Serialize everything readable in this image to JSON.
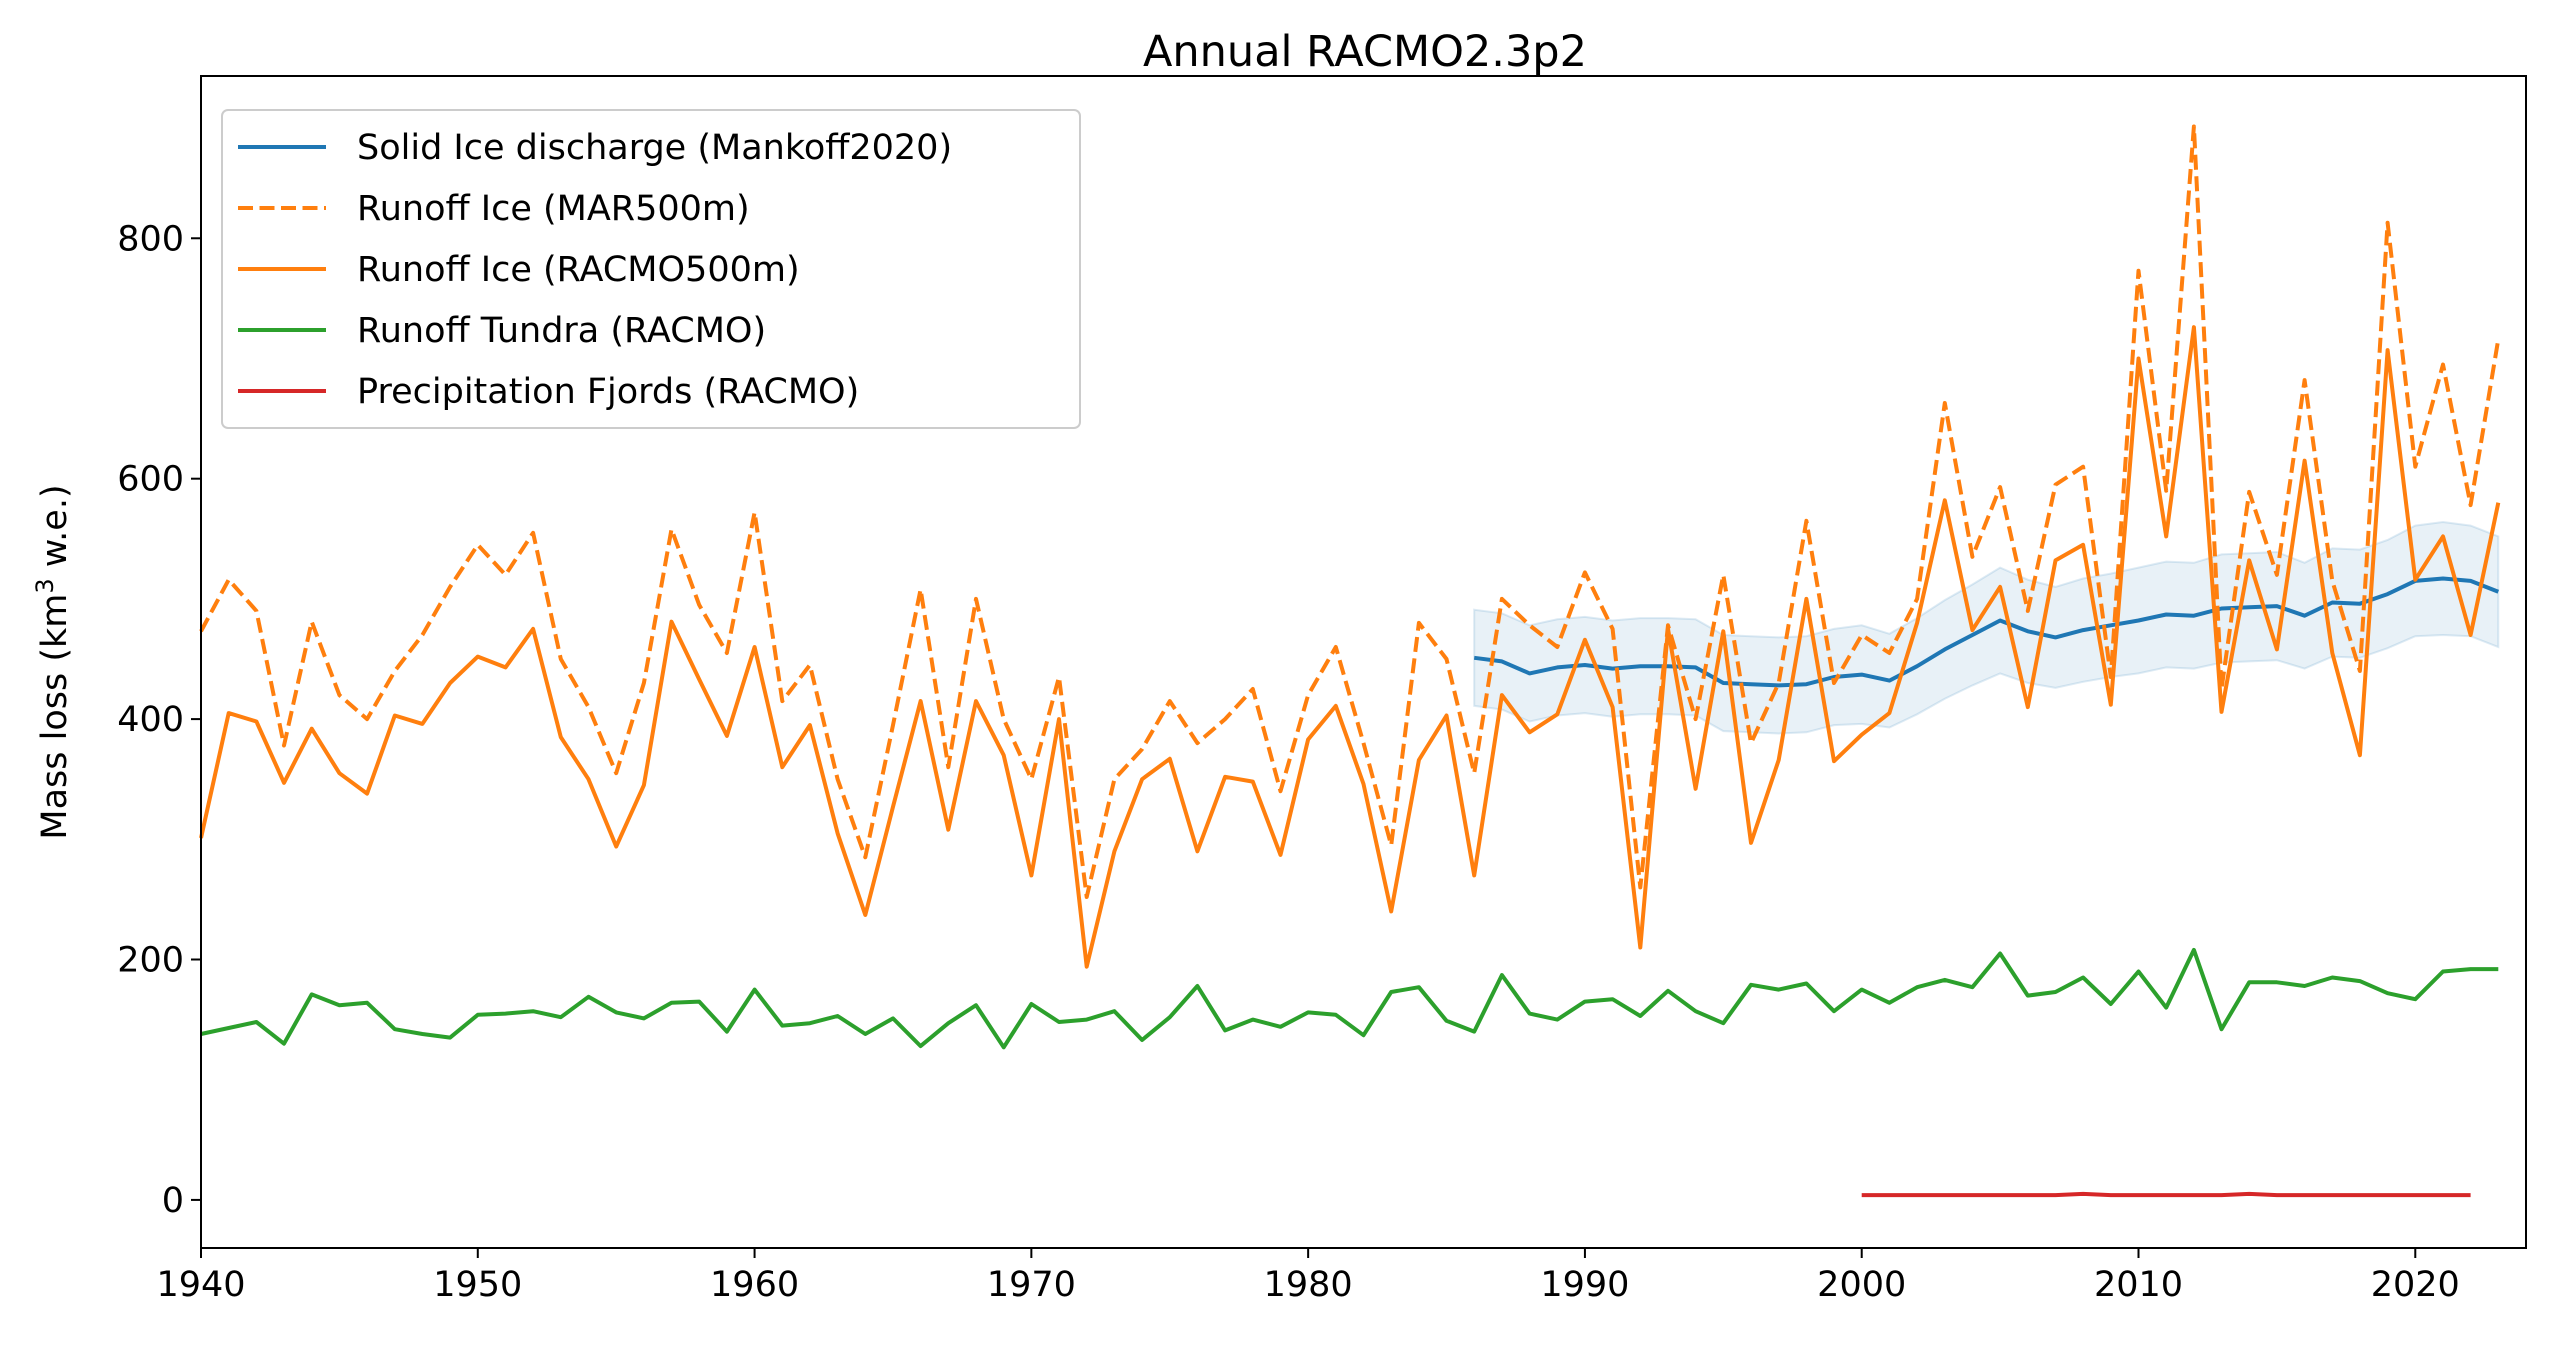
{
  "chart_data": {
    "type": "line",
    "title": "Annual RACMO2.3p2",
    "xlabel": "",
    "ylabel_main": "Mass loss (km",
    "ylabel_sup": "3",
    "ylabel_tail": " w.e.)",
    "xlim": [
      1940,
      2024
    ],
    "ylim": [
      -40,
      935
    ],
    "xticks": [
      1940,
      1950,
      1960,
      1970,
      1980,
      1990,
      2000,
      2010,
      2020
    ],
    "yticks": [
      0,
      200,
      400,
      600,
      800
    ],
    "grid": false,
    "legend_position": "upper-left",
    "series": [
      {
        "name": "Solid Ice discharge (Mankoff2020)",
        "color": "#1f77b4",
        "dash": "solid",
        "x": [
          1986,
          1987,
          1988,
          1989,
          1990,
          1991,
          1992,
          1993,
          1994,
          1995,
          1996,
          1997,
          1998,
          1999,
          2000,
          2001,
          2002,
          2003,
          2004,
          2005,
          2006,
          2007,
          2008,
          2009,
          2010,
          2011,
          2012,
          2013,
          2014,
          2015,
          2016,
          2017,
          2018,
          2019,
          2020,
          2021,
          2022,
          2023
        ],
        "values": [
          451,
          448,
          438,
          443,
          445,
          442,
          444,
          444,
          443,
          430,
          429,
          428,
          429,
          435,
          437,
          432,
          444,
          458,
          470,
          482,
          473,
          468,
          474,
          478,
          482,
          487,
          486,
          492,
          493,
          494,
          486,
          497,
          496,
          504,
          515,
          517,
          515,
          506
        ]
      },
      {
        "name": "Runoff Ice (MAR500m)",
        "color": "#ff7f0e",
        "dash": "dashed",
        "x": [
          1940,
          1941,
          1942,
          1943,
          1944,
          1945,
          1946,
          1947,
          1948,
          1949,
          1950,
          1951,
          1952,
          1953,
          1954,
          1955,
          1956,
          1957,
          1958,
          1959,
          1960,
          1961,
          1962,
          1963,
          1964,
          1965,
          1966,
          1967,
          1968,
          1969,
          1970,
          1971,
          1972,
          1973,
          1974,
          1975,
          1976,
          1977,
          1978,
          1979,
          1980,
          1981,
          1982,
          1983,
          1984,
          1985,
          1986,
          1987,
          1988,
          1989,
          1990,
          1991,
          1992,
          1993,
          1994,
          1995,
          1996,
          1997,
          1998,
          1999,
          2000,
          2001,
          2002,
          2003,
          2004,
          2005,
          2006,
          2007,
          2008,
          2009,
          2010,
          2011,
          2012,
          2013,
          2014,
          2015,
          2016,
          2017,
          2018,
          2019,
          2020,
          2021,
          2022,
          2023
        ],
        "values": [
          473,
          516,
          490,
          378,
          481,
          420,
          400,
          440,
          470,
          510,
          545,
          520,
          555,
          450,
          410,
          355,
          430,
          558,
          495,
          455,
          572,
          415,
          445,
          350,
          285,
          395,
          508,
          360,
          500,
          400,
          350,
          435,
          252,
          350,
          375,
          415,
          380,
          400,
          425,
          340,
          420,
          460,
          380,
          295,
          480,
          450,
          355,
          500,
          478,
          460,
          522,
          475,
          260,
          478,
          400,
          520,
          380,
          430,
          565,
          430,
          470,
          455,
          500,
          663,
          535,
          593,
          490,
          595,
          610,
          435,
          773,
          590,
          893,
          425,
          589,
          520,
          682,
          515,
          440,
          813,
          610,
          695,
          578,
          716
        ]
      },
      {
        "name": "Runoff Ice (RACMO500m)",
        "color": "#ff7f0e",
        "dash": "solid",
        "x": [
          1940,
          1941,
          1942,
          1943,
          1944,
          1945,
          1946,
          1947,
          1948,
          1949,
          1950,
          1951,
          1952,
          1953,
          1954,
          1955,
          1956,
          1957,
          1958,
          1959,
          1960,
          1961,
          1962,
          1963,
          1964,
          1965,
          1966,
          1967,
          1968,
          1969,
          1970,
          1971,
          1972,
          1973,
          1974,
          1975,
          1976,
          1977,
          1978,
          1979,
          1980,
          1981,
          1982,
          1983,
          1984,
          1985,
          1986,
          1987,
          1988,
          1989,
          1990,
          1991,
          1992,
          1993,
          1994,
          1995,
          1996,
          1997,
          1998,
          1999,
          2000,
          2001,
          2002,
          2003,
          2004,
          2005,
          2006,
          2007,
          2008,
          2009,
          2010,
          2011,
          2012,
          2013,
          2014,
          2015,
          2016,
          2017,
          2018,
          2019,
          2020,
          2021,
          2022,
          2023
        ],
        "values": [
          301,
          405,
          398,
          347,
          392,
          355,
          338,
          403,
          396,
          430,
          452,
          443,
          475,
          385,
          350,
          294,
          345,
          481,
          433,
          386,
          460,
          360,
          395,
          305,
          237,
          327,
          415,
          308,
          415,
          370,
          270,
          400,
          194,
          290,
          350,
          367,
          290,
          352,
          348,
          287,
          383,
          411,
          346,
          240,
          366,
          403,
          270,
          420,
          389,
          404,
          466,
          410,
          210,
          475,
          342,
          473,
          297,
          366,
          500,
          365,
          387,
          405,
          480,
          582,
          474,
          510,
          410,
          532,
          545,
          412,
          700,
          552,
          726,
          406,
          532,
          458,
          615,
          455,
          370,
          707,
          516,
          552,
          470,
          580
        ]
      },
      {
        "name": "Runoff Tundra (RACMO)",
        "color": "#2ca02c",
        "dash": "solid",
        "x": [
          1940,
          1941,
          1942,
          1943,
          1944,
          1945,
          1946,
          1947,
          1948,
          1949,
          1950,
          1951,
          1952,
          1953,
          1954,
          1955,
          1956,
          1957,
          1958,
          1959,
          1960,
          1961,
          1962,
          1963,
          1964,
          1965,
          1966,
          1967,
          1968,
          1969,
          1970,
          1971,
          1972,
          1973,
          1974,
          1975,
          1976,
          1977,
          1978,
          1979,
          1980,
          1981,
          1982,
          1983,
          1984,
          1985,
          1986,
          1987,
          1988,
          1989,
          1990,
          1991,
          1992,
          1993,
          1994,
          1995,
          1996,
          1997,
          1998,
          1999,
          2000,
          2001,
          2002,
          2003,
          2004,
          2005,
          2006,
          2007,
          2008,
          2009,
          2010,
          2011,
          2012,
          2013,
          2014,
          2015,
          2016,
          2017,
          2018,
          2019,
          2020,
          2021,
          2022,
          2023
        ],
        "values": [
          138,
          143,
          148,
          130,
          171,
          162,
          164,
          142,
          138,
          135,
          154,
          155,
          157,
          152,
          169,
          156,
          151,
          164,
          165,
          140,
          175,
          145,
          147,
          153,
          138,
          151,
          128,
          147,
          162,
          127,
          163,
          148,
          150,
          157,
          133,
          152,
          178,
          141,
          150,
          144,
          156,
          154,
          137,
          173,
          177,
          149,
          140,
          187,
          155,
          150,
          165,
          167,
          153,
          174,
          157,
          147,
          179,
          175,
          180,
          157,
          175,
          164,
          177,
          183,
          177,
          205,
          170,
          173,
          185,
          163,
          190,
          160,
          208,
          142,
          181,
          181,
          178,
          185,
          182,
          172,
          167,
          190,
          192,
          192
        ]
      },
      {
        "name": "Precipitation Fjords (RACMO)",
        "color": "#d62728",
        "dash": "solid",
        "x": [
          2000,
          2001,
          2002,
          2003,
          2004,
          2005,
          2006,
          2007,
          2008,
          2009,
          2010,
          2011,
          2012,
          2013,
          2014,
          2015,
          2016,
          2017,
          2018,
          2019,
          2020,
          2021,
          2022
        ],
        "values": [
          4,
          4,
          4,
          4,
          4,
          4,
          4,
          4,
          5,
          4,
          4,
          4,
          4,
          4,
          5,
          4,
          4,
          4,
          4,
          4,
          4,
          4,
          4
        ]
      }
    ],
    "bands": [
      {
        "for_series": "Solid Ice discharge (Mankoff2020)",
        "color": "#1f77b4",
        "x": [
          1986,
          1987,
          1988,
          1989,
          1990,
          1991,
          1992,
          1993,
          1994,
          1995,
          1996,
          1997,
          1998,
          1999,
          2000,
          2001,
          2002,
          2003,
          2004,
          2005,
          2006,
          2007,
          2008,
          2009,
          2010,
          2011,
          2012,
          2013,
          2014,
          2015,
          2016,
          2017,
          2018,
          2019,
          2020,
          2021,
          2022,
          2023
        ],
        "lower": [
          411,
          408,
          398,
          403,
          405,
          402,
          404,
          404,
          403,
          390,
          389,
          388,
          389,
          395,
          396,
          393,
          404,
          417,
          428,
          438,
          430,
          426,
          431,
          435,
          438,
          443,
          442,
          447,
          448,
          449,
          442,
          452,
          451,
          459,
          469,
          470,
          469,
          460
        ],
        "upper": [
          491,
          488,
          478,
          483,
          485,
          482,
          484,
          484,
          483,
          470,
          469,
          468,
          469,
          475,
          478,
          471,
          484,
          499,
          512,
          526,
          516,
          510,
          517,
          521,
          526,
          531,
          530,
          537,
          538,
          539,
          530,
          542,
          541,
          549,
          561,
          564,
          561,
          552
        ]
      }
    ]
  }
}
